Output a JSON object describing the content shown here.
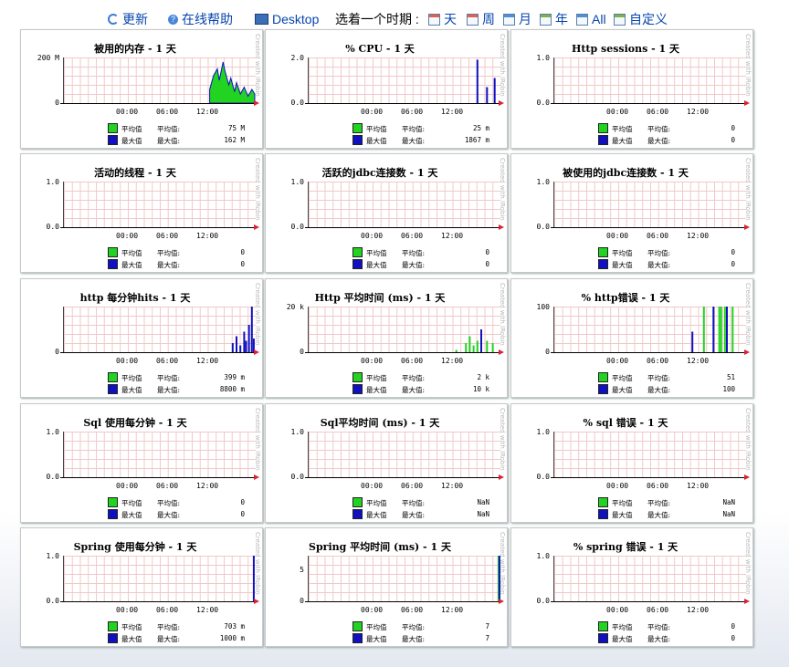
{
  "toolbar": {
    "refresh": "更新",
    "help": "在线帮助",
    "desktop": "Desktop",
    "period_label": "选着一个时期 :",
    "periods": [
      "天",
      "周",
      "月",
      "年",
      "All",
      "自定义"
    ]
  },
  "panel_common": {
    "watermark": "Created with JRobin",
    "x_ticks": [
      "00:00",
      "06:00",
      "12:00"
    ],
    "avg_name": "平均值",
    "avg_key": "平均值:",
    "max_name": "最大值",
    "max_key": "最大值:"
  },
  "panels": [
    {
      "title": "被用的内存 - 1 天",
      "y_top": "200 M",
      "y_bot": "0",
      "avg": "75 M",
      "max": "162 M"
    },
    {
      "title": "% CPU - 1 天",
      "y_top": "2.0",
      "y_bot": "0.0",
      "avg": "25 m",
      "max": "1867 m"
    },
    {
      "title": "Http sessions - 1 天",
      "y_top": "1.0",
      "y_bot": "0.0",
      "avg": "0",
      "max": "0"
    },
    {
      "title": "活动的线程 - 1 天",
      "y_top": "1.0",
      "y_bot": "0.0",
      "avg": "0",
      "max": "0"
    },
    {
      "title": "活跃的jdbc连接数 - 1 天",
      "y_top": "1.0",
      "y_bot": "0.0",
      "avg": "0",
      "max": "0"
    },
    {
      "title": "被使用的jdbc连接数 - 1 天",
      "y_top": "1.0",
      "y_bot": "0.0",
      "avg": "0",
      "max": "0"
    },
    {
      "title": "http 每分钟hits - 1 天",
      "y_top": "",
      "y_bot": "0",
      "avg": "399 m",
      "max": "8800 m"
    },
    {
      "title": "Http 平均时间 (ms) - 1 天",
      "y_top": "20 k",
      "y_bot": "0",
      "avg": "2 k",
      "max": "10 k"
    },
    {
      "title": "% http错误 - 1 天",
      "y_top": "100",
      "y_bot": "0",
      "avg": "51",
      "max": "100"
    },
    {
      "title": "Sql 使用每分钟 - 1 天",
      "y_top": "1.0",
      "y_bot": "0.0",
      "avg": "0",
      "max": "0"
    },
    {
      "title": "Sql平均时间 (ms) - 1 天",
      "y_top": "1.0",
      "y_bot": "0.0",
      "avg": "NaN",
      "max": "NaN"
    },
    {
      "title": "% sql 错误 - 1 天",
      "y_top": "1.0",
      "y_bot": "0.0",
      "avg": "NaN",
      "max": "NaN"
    },
    {
      "title": "Spring 使用每分钟 - 1 天",
      "y_top": "1.0",
      "y_bot": "0.0",
      "avg": "703 m",
      "max": "1000 m"
    },
    {
      "title": "Spring 平均时间 (ms) - 1 天",
      "y_top": "",
      "y_mid": "5",
      "y_bot": "0",
      "avg": "7",
      "max": "7"
    },
    {
      "title": "% spring 错误 - 1 天",
      "y_top": "1.0",
      "y_bot": "0.0",
      "avg": "0",
      "max": "0"
    }
  ],
  "colors": {
    "avg": "#22d322",
    "max": "#1010c0",
    "grid": "#f2c8c8",
    "arrow": "#dd2222"
  }
}
